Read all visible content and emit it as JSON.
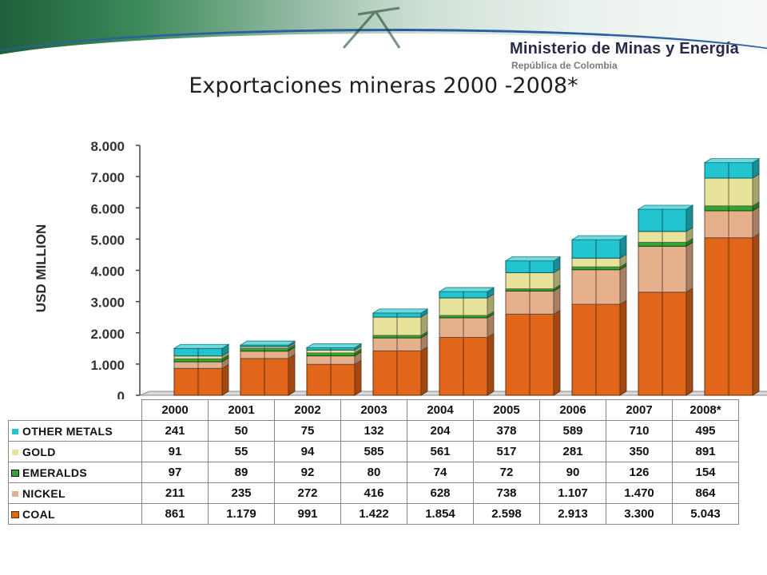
{
  "header": {
    "ministry": "Ministerio de Minas y Energía",
    "republic": "República de Colombia"
  },
  "title": "Exportaciones mineras 2000 -2008*",
  "colors": {
    "coal": "#e1661a",
    "nickel": "#e6b08c",
    "emeralds": "#2ea82e",
    "gold": "#e7e39a",
    "other_metals": "#22c4cf"
  },
  "chart_data": {
    "type": "bar",
    "stacked": true,
    "three_d": true,
    "title": "",
    "xlabel": "",
    "ylabel": "USD MILLION",
    "ylim": [
      0,
      8000
    ],
    "yticks": [
      "0",
      "1.000",
      "2.000",
      "3.000",
      "4.000",
      "5.000",
      "6.000",
      "7.000",
      "8.000"
    ],
    "categories": [
      "2000",
      "2001",
      "2002",
      "2003",
      "2004",
      "2005",
      "2006",
      "2007",
      "2008*"
    ],
    "legend": "data table below chart",
    "series": [
      {
        "name": "COAL",
        "values": [
          861,
          1179,
          991,
          1422,
          1854,
          2598,
          2913,
          3300,
          5043
        ],
        "labels": [
          "861",
          "1.179",
          "991",
          "1.422",
          "1.854",
          "2.598",
          "2.913",
          "3.300",
          "5.043"
        ]
      },
      {
        "name": "NICKEL",
        "values": [
          211,
          235,
          272,
          416,
          628,
          738,
          1107,
          1470,
          864
        ],
        "labels": [
          "211",
          "235",
          "272",
          "416",
          "628",
          "738",
          "1.107",
          "1.470",
          "864"
        ]
      },
      {
        "name": "EMERALDS",
        "values": [
          97,
          89,
          92,
          80,
          74,
          72,
          90,
          126,
          154
        ],
        "labels": [
          "97",
          "89",
          "92",
          "80",
          "74",
          "72",
          "90",
          "126",
          "154"
        ]
      },
      {
        "name": "GOLD",
        "values": [
          91,
          55,
          94,
          585,
          561,
          517,
          281,
          350,
          891
        ],
        "labels": [
          "91",
          "55",
          "94",
          "585",
          "561",
          "517",
          "281",
          "350",
          "891"
        ]
      },
      {
        "name": "OTHER METALS",
        "values": [
          241,
          50,
          75,
          132,
          204,
          378,
          589,
          710,
          495
        ],
        "labels": [
          "241",
          "50",
          "75",
          "132",
          "204",
          "378",
          "589",
          "710",
          "495"
        ]
      }
    ]
  }
}
